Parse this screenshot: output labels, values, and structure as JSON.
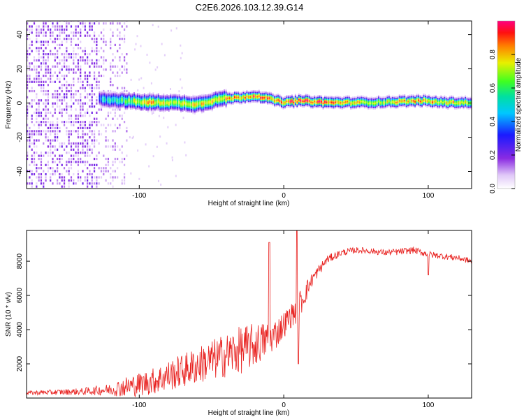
{
  "figure_title": "C2E6.2026.103.12.39.G14",
  "chart_data": [
    {
      "type": "heatmap",
      "title": "C2E6.2026.103.12.39.G14",
      "xlabel": "Height of straight line (km)",
      "ylabel": "Frequency (Hz)",
      "xlim": [
        -178,
        130
      ],
      "ylim": [
        -50,
        48
      ],
      "xticks": [
        -100,
        0,
        100
      ],
      "yticks": [
        -40,
        -20,
        0,
        20,
        40
      ],
      "colorbar": {
        "label": "Normalized spectral amplitude",
        "range": [
          0,
          1
        ],
        "ticks": [
          0.0,
          0.2,
          0.4,
          0.6,
          0.8
        ],
        "tick_labels": [
          "0.0",
          "0.2",
          "0.4",
          "0.6",
          "0.8"
        ],
        "colormap": "rainbow (white-violet-blue-cyan-green-yellow-red-magenta)"
      },
      "ridge": [
        {
          "x": -125,
          "freq": 2,
          "amp": 0.45
        },
        {
          "x": -110,
          "freq": 1,
          "amp": 0.6
        },
        {
          "x": -95,
          "freq": 0,
          "amp": 0.85
        },
        {
          "x": -80,
          "freq": 0,
          "amp": 0.7
        },
        {
          "x": -60,
          "freq": -1,
          "amp": 0.75
        },
        {
          "x": -45,
          "freq": 2,
          "amp": 0.8
        },
        {
          "x": -30,
          "freq": 3,
          "amp": 0.85
        },
        {
          "x": -20,
          "freq": 4,
          "amp": 0.9
        },
        {
          "x": -10,
          "freq": 2,
          "amp": 0.85
        },
        {
          "x": 0,
          "freq": 0,
          "amp": 0.9
        },
        {
          "x": 10,
          "freq": 1,
          "amp": 0.95
        },
        {
          "x": 30,
          "freq": 0,
          "amp": 0.9
        },
        {
          "x": 60,
          "freq": 0,
          "amp": 0.7
        },
        {
          "x": 95,
          "freq": 1,
          "amp": 0.85
        },
        {
          "x": 110,
          "freq": 0,
          "amp": 0.8
        },
        {
          "x": 130,
          "freq": 0,
          "amp": 0.75
        }
      ]
    },
    {
      "type": "line",
      "xlabel": "Height of straight line (km)",
      "ylabel": "SNR (10 * v/v)",
      "xlim": [
        -178,
        130
      ],
      "ylim": [
        0,
        9800
      ],
      "xticks": [
        -100,
        0,
        100
      ],
      "yticks": [
        2000,
        4000,
        6000,
        8000
      ],
      "color": "#e8201e",
      "envelope": {
        "x": [
          -178,
          -140,
          -120,
          -110,
          -100,
          -90,
          -80,
          -70,
          -60,
          -50,
          -40,
          -30,
          -20,
          -10,
          -5,
          0,
          5,
          10,
          20,
          30,
          40,
          50,
          60,
          70,
          80,
          90,
          100,
          110,
          120,
          130
        ],
        "mean": [
          300,
          380,
          500,
          650,
          800,
          1000,
          1300,
          1600,
          1900,
          2200,
          2500,
          2800,
          3100,
          3500,
          3800,
          4300,
          4800,
          5300,
          7000,
          8100,
          8500,
          8650,
          8600,
          8500,
          8550,
          8650,
          8400,
          8300,
          8200,
          8000
        ],
        "spread": [
          120,
          200,
          350,
          600,
          700,
          800,
          900,
          1000,
          1100,
          1200,
          1300,
          1400,
          1300,
          1000,
          900,
          800,
          700,
          900,
          400,
          250,
          200,
          180,
          180,
          180,
          200,
          200,
          200,
          180,
          180,
          180
        ]
      },
      "spikes": [
        {
          "x": -10,
          "value": 9100
        },
        {
          "x": 9,
          "value": 9800
        },
        {
          "x": 10,
          "value": 2000
        },
        {
          "x": 100,
          "value": 7200
        }
      ]
    }
  ]
}
